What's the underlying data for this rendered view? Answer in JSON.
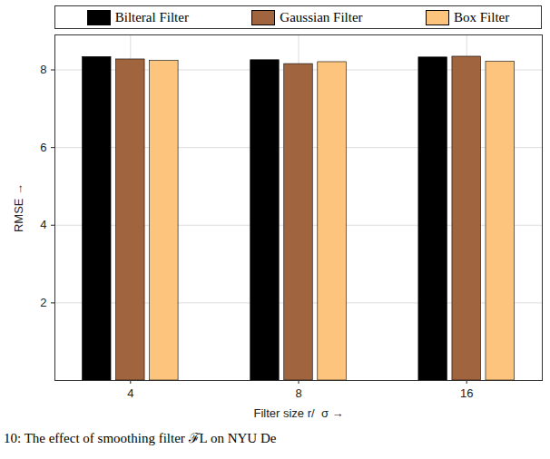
{
  "chart_data": {
    "type": "bar",
    "caption": "10: The effect of smoothing filter ℱL on NYU De",
    "x_label": "Filter size r/  σ",
    "y_label": "RMSE",
    "categories": [
      "4",
      "8",
      "16"
    ],
    "series": [
      {
        "name": "Bilteral Filter",
        "color": "#000000",
        "values": [
          8.33,
          8.25,
          8.32
        ]
      },
      {
        "name": "Gaussian Filter",
        "color": "#a0643f",
        "values": [
          8.27,
          8.15,
          8.34
        ]
      },
      {
        "name": "Box Filter",
        "color": "#fdc47d",
        "values": [
          8.23,
          8.2,
          8.21
        ]
      }
    ],
    "ylim": [
      0,
      8.9
    ],
    "yticks": [
      2,
      4,
      6,
      8
    ],
    "grid": true,
    "legend": "top"
  }
}
